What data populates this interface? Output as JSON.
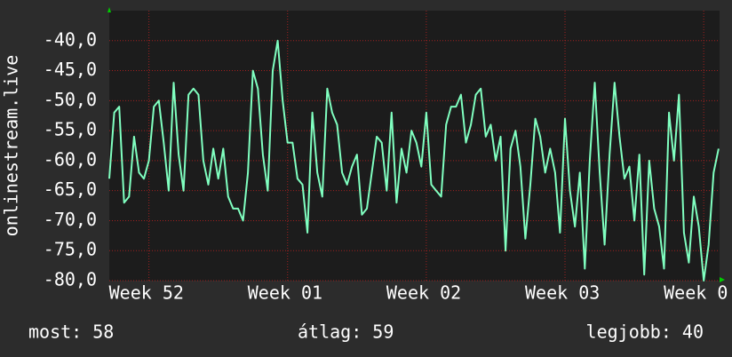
{
  "chart_data": {
    "type": "line",
    "ylabel": "onlinestream.live",
    "x": [
      0,
      0.25,
      0.5,
      0.75,
      1,
      1.25,
      1.5,
      1.75,
      2,
      2.25,
      2.5,
      2.75,
      3,
      3.25,
      3.5,
      3.75,
      4,
      4.25,
      4.5,
      4.75,
      5,
      5.25,
      5.5,
      5.75,
      6,
      6.25,
      6.5,
      6.75,
      7,
      7.25,
      7.5,
      7.75,
      8,
      8.25,
      8.5,
      8.75,
      9,
      9.25,
      9.5,
      9.75,
      10,
      10.25,
      10.5,
      10.75,
      11,
      11.25,
      11.5,
      11.75,
      12,
      12.25,
      12.5,
      12.75,
      13,
      13.25,
      13.5,
      13.75,
      14,
      14.25,
      14.5,
      14.75,
      15,
      15.25,
      15.5,
      15.75,
      16,
      16.25,
      16.5,
      16.75,
      17,
      17.25,
      17.5,
      17.75,
      18,
      18.25,
      18.5,
      18.75,
      19,
      19.25,
      19.5,
      19.75,
      20,
      20.25,
      20.5,
      20.75,
      21,
      21.25,
      21.5,
      21.75,
      22,
      22.25,
      22.5,
      22.75,
      23,
      23.25,
      23.5,
      23.75,
      24,
      24.25,
      24.5,
      24.75,
      25,
      25.25,
      25.5,
      25.75,
      26,
      26.25,
      26.5,
      26.75,
      27,
      27.25,
      27.5,
      27.75,
      28,
      28.25,
      28.5,
      28.75,
      29,
      29.25,
      29.5,
      29.75,
      30,
      30.25,
      30.5,
      30.75
    ],
    "series": [
      {
        "color": "#80ffc0",
        "values": [
          -63,
          -52,
          -51,
          -67,
          -66,
          -56,
          -62,
          -63,
          -60,
          -51,
          -50,
          -57,
          -65,
          -47,
          -59,
          -65,
          -49,
          -48,
          -49,
          -60,
          -64,
          -58,
          -63,
          -58,
          -66,
          -68,
          -68,
          -70,
          -62,
          -45,
          -48,
          -59,
          -65,
          -45,
          -40,
          -50,
          -57,
          -57,
          -63,
          -64,
          -72,
          -52,
          -62,
          -66,
          -48,
          -52,
          -54,
          -62,
          -64,
          -61,
          -59,
          -69,
          -68,
          -62,
          -56,
          -57,
          -65,
          -52,
          -67,
          -58,
          -62,
          -55,
          -57,
          -61,
          -52,
          -64,
          -65,
          -66,
          -54,
          -51,
          -51,
          -49,
          -57,
          -54,
          -49,
          -48,
          -56,
          -54,
          -60,
          -56,
          -75,
          -58,
          -55,
          -61,
          -73,
          -64,
          -53,
          -56,
          -62,
          -58,
          -62,
          -72,
          -53,
          -65,
          -71,
          -62,
          -78,
          -60,
          -47,
          -62,
          -74,
          -59,
          -47,
          -56,
          -63,
          -61,
          -70,
          -59,
          -79,
          -60,
          -68,
          -71,
          -78,
          -52,
          -60,
          -49,
          -72,
          -77,
          -66,
          -71,
          -80,
          -74,
          -62,
          -58
        ]
      }
    ],
    "xlim": [
      0,
      30.8
    ],
    "xticks": [
      {
        "value": 2,
        "label": "Week 52"
      },
      {
        "value": 9,
        "label": "Week 01"
      },
      {
        "value": 16,
        "label": "Week 02"
      },
      {
        "value": 23,
        "label": "Week 03"
      },
      {
        "value": 30,
        "label": "Week 0"
      }
    ],
    "ylim": [
      -80,
      -35
    ],
    "yticks": [
      {
        "value": -40,
        "label": "-40,0"
      },
      {
        "value": -45,
        "label": "-45,0"
      },
      {
        "value": -50,
        "label": "-50,0"
      },
      {
        "value": -55,
        "label": "-55,0"
      },
      {
        "value": -60,
        "label": "-60,0"
      },
      {
        "value": -65,
        "label": "-65,0"
      },
      {
        "value": -70,
        "label": "-70,0"
      },
      {
        "value": -75,
        "label": "-75,0"
      },
      {
        "value": -80,
        "label": "-80,0"
      }
    ],
    "grid": true
  },
  "footer": {
    "current": "most: 58",
    "average": "átlag: 59",
    "best": "legjobb: 40"
  }
}
